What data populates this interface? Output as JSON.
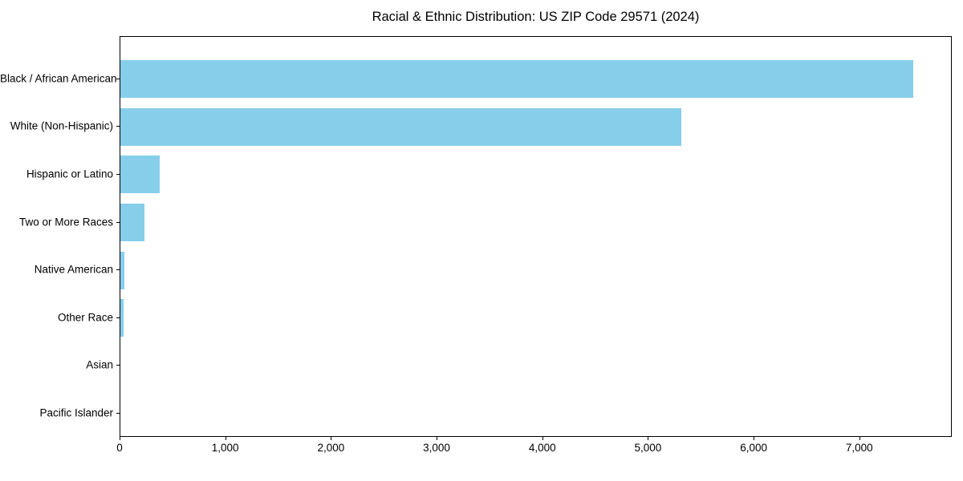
{
  "chart_data": {
    "type": "bar",
    "orientation": "horizontal",
    "title": "Racial & Ethnic Distribution: US ZIP Code 29571 (2024)",
    "xlabel": "",
    "ylabel": "",
    "categories": [
      "Black / African American",
      "White (Non-Hispanic)",
      "Hispanic or Latino",
      "Two or More Races",
      "Native American",
      "Other Race",
      "Asian",
      "Pacific Islander"
    ],
    "values": [
      7500,
      5310,
      375,
      225,
      40,
      30,
      0,
      0
    ],
    "xlim": [
      0,
      7875
    ],
    "xticks": [
      0,
      1000,
      2000,
      3000,
      4000,
      5000,
      6000,
      7000
    ],
    "xtick_labels": [
      "0",
      "1,000",
      "2,000",
      "3,000",
      "4,000",
      "5,000",
      "6,000",
      "7,000"
    ],
    "bar_color": "#87CEEB",
    "text_color": "#000000",
    "grid": false,
    "legend": null
  }
}
